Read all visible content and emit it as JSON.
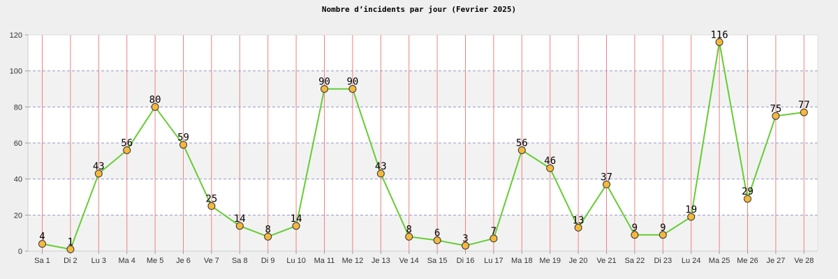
{
  "chart_data": {
    "type": "line",
    "title": "Nombre d’incidents par jour (Fevrier 2025)",
    "xlabel": "",
    "ylabel": "",
    "categories": [
      "Sa 1",
      "Di 2",
      "Lu 3",
      "Ma 4",
      "Me 5",
      "Je 6",
      "Ve 7",
      "Sa 8",
      "Di 9",
      "Lu 10",
      "Ma 11",
      "Me 12",
      "Je 13",
      "Ve 14",
      "Sa 15",
      "Di 16",
      "Lu 17",
      "Ma 18",
      "Me 19",
      "Je 20",
      "Ve 21",
      "Sa 22",
      "Di 23",
      "Lu 24",
      "Ma 25",
      "Me 26",
      "Je 27",
      "Ve 28"
    ],
    "series": [
      {
        "values": [
          4,
          1,
          43,
          56,
          80,
          59,
          25,
          14,
          8,
          14,
          90,
          90,
          43,
          8,
          6,
          3,
          7,
          56,
          46,
          13,
          37,
          9,
          9,
          19,
          116,
          29,
          75,
          77
        ]
      }
    ],
    "ylim": [
      0,
      120
    ],
    "yticks": [
      0,
      20,
      40,
      60,
      80,
      100,
      120
    ],
    "grid": true,
    "colors": {
      "line": "#66cc33",
      "marker_fill": "#f5b83d",
      "marker_stroke": "#333333",
      "vgrid": "#f08080",
      "hgrid": "#9999cc",
      "band_light": "#ffffff",
      "band_dark": "#f2f2f2"
    }
  }
}
